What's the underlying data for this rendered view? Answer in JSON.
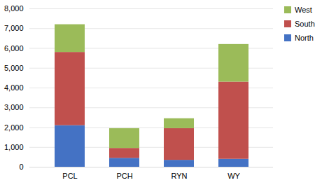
{
  "chart_data": {
    "type": "bar",
    "stacked": true,
    "categories": [
      "PCL",
      "PCH",
      "RYN",
      "WY"
    ],
    "series": [
      {
        "name": "North",
        "color": "#4472C4",
        "values": [
          2100,
          450,
          350,
          400
        ]
      },
      {
        "name": "South",
        "color": "#C0504D",
        "values": [
          3700,
          500,
          1600,
          3900
        ]
      },
      {
        "name": "West",
        "color": "#9BBB59",
        "values": [
          1400,
          1000,
          500,
          1900
        ]
      }
    ],
    "ylim": [
      0,
      8000
    ],
    "yticks": [
      0,
      {
        "value": 1000,
        "label": "1,000"
      },
      {
        "value": 2000,
        "label": "2,000"
      },
      {
        "value": 3000,
        "label": "3,000"
      },
      {
        "value": 4000,
        "label": "4,000"
      },
      {
        "value": 5000,
        "label": "5,000"
      },
      {
        "value": 6000,
        "label": "6,000"
      },
      {
        "value": 7000,
        "label": "7,000"
      },
      {
        "value": 8000,
        "label": "8,000"
      }
    ],
    "grid": true,
    "legend": "upper right"
  }
}
